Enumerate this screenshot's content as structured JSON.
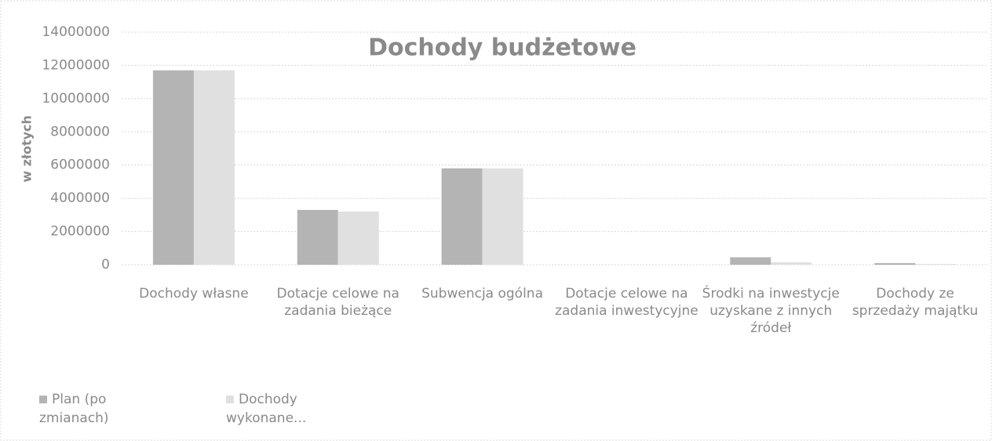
{
  "chart_data": {
    "type": "bar",
    "title": "Dochody budżetowe",
    "y_label": "w złotych",
    "categories": [
      "Dochody własne",
      "Dotacje celowe na zadania bieżące",
      "Subwencja ogólna",
      "Dotacje celowe na zadania inwestycyjne",
      "Środki na inwestycje uzyskane z innych źródeł",
      "Dochody ze sprzedaży majątku"
    ],
    "series": [
      {
        "name": "Plan (po zmianach)",
        "color": "#b4b4b4",
        "values": [
          11700000,
          3300000,
          5800000,
          0,
          450000,
          100000
        ]
      },
      {
        "name": "Dochody wykonane...",
        "color": "#e0e0e0",
        "values": [
          11700000,
          3200000,
          5800000,
          0,
          150000,
          50000
        ]
      }
    ],
    "ylim": [
      0,
      14000000
    ],
    "yticks": [
      0,
      2000000,
      4000000,
      6000000,
      8000000,
      10000000,
      12000000,
      14000000
    ],
    "grid": true
  }
}
